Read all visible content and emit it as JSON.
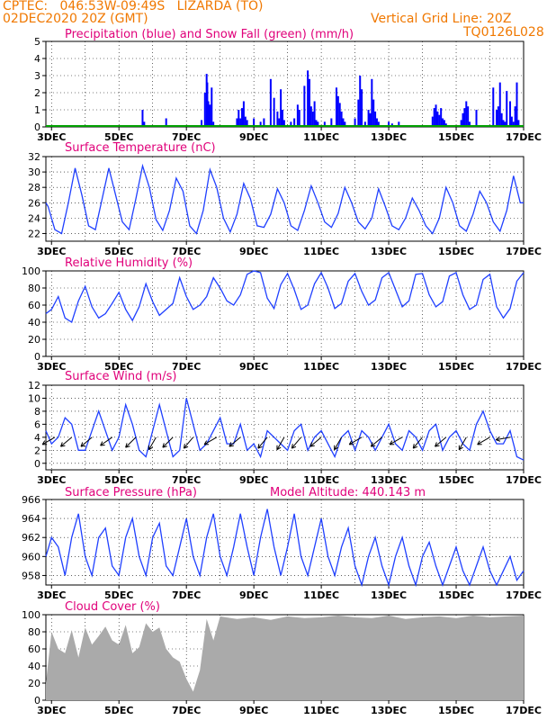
{
  "header": {
    "line1": "CPTEC:   046:53W-09:49S   LIZARDA (TO)",
    "line2": "02DEC2020 20Z (GMT)",
    "grid_note": "Vertical Grid Line: 20Z",
    "code": "TQ0126L028"
  },
  "colors": {
    "precip": "#0000ff",
    "snow": "#00a000",
    "line": "#2040ff",
    "cloud": "#aaaaaa",
    "title": "#e0007a",
    "header": "#f07800"
  },
  "x_labels": [
    "3DEC",
    "5DEC",
    "7DEC",
    "9DEC",
    "11DEC",
    "13DEC",
    "15DEC",
    "17DEC"
  ],
  "chart_data": [
    {
      "type": "bar",
      "title": "Precipitation (blue) and Snow Fall (green) (mm/h)",
      "ylim": [
        0,
        5
      ],
      "yticks": [
        0,
        1,
        2,
        3,
        4,
        5
      ],
      "x_range_days": [
        2.833,
        17.0
      ],
      "series": [
        {
          "name": "Precipitation",
          "x": [
            5.7,
            5.75,
            6.4,
            7.45,
            7.55,
            7.6,
            7.62,
            7.65,
            7.7,
            7.75,
            7.8,
            8.5,
            8.55,
            8.6,
            8.65,
            8.7,
            8.75,
            8.8,
            9.0,
            9.2,
            9.3,
            9.5,
            9.6,
            9.7,
            9.75,
            9.8,
            9.85,
            9.9,
            10.1,
            10.2,
            10.3,
            10.35,
            10.5,
            10.6,
            10.65,
            10.7,
            10.75,
            10.8,
            10.85,
            10.9,
            11.1,
            11.3,
            11.45,
            11.5,
            11.55,
            11.6,
            11.65,
            11.7,
            12.0,
            12.1,
            12.15,
            12.2,
            12.3,
            12.4,
            12.45,
            12.5,
            12.55,
            12.6,
            12.65,
            12.7,
            13.0,
            13.1,
            13.3,
            14.3,
            14.35,
            14.4,
            14.45,
            14.5,
            14.55,
            14.6,
            14.65,
            14.7,
            15.15,
            15.2,
            15.25,
            15.3,
            15.35,
            15.4,
            15.6,
            16.1,
            16.2,
            16.25,
            16.3,
            16.35,
            16.4,
            16.45,
            16.5,
            16.6,
            16.65,
            16.7,
            16.75,
            16.8,
            16.85
          ],
          "values": [
            1.0,
            0.3,
            0.5,
            0.4,
            2.0,
            3.1,
            2.6,
            1.5,
            1.3,
            2.3,
            0.3,
            0.5,
            1.0,
            0.5,
            1.1,
            1.5,
            0.6,
            0.4,
            0.5,
            0.3,
            0.5,
            2.8,
            1.7,
            0.9,
            0.5,
            2.2,
            1.0,
            0.4,
            0.3,
            0.5,
            1.3,
            1.0,
            2.4,
            3.3,
            2.8,
            1.2,
            0.9,
            1.5,
            0.4,
            0.3,
            0.3,
            0.5,
            2.3,
            1.8,
            1.4,
            0.9,
            0.5,
            0.3,
            0.5,
            1.6,
            3.0,
            2.2,
            0.3,
            1.0,
            0.8,
            2.8,
            1.6,
            0.9,
            0.5,
            0.3,
            0.3,
            0.2,
            0.3,
            0.6,
            1.1,
            1.3,
            0.9,
            0.7,
            1.1,
            0.5,
            0.4,
            0.2,
            0.4,
            0.8,
            1.1,
            1.5,
            1.2,
            0.3,
            1.0,
            2.3,
            1.0,
            1.2,
            2.6,
            0.8,
            0.4,
            0.3,
            2.1,
            1.5,
            0.6,
            0.3,
            1.2,
            2.6,
            0.4
          ]
        },
        {
          "name": "Snow Fall",
          "values": [
            0
          ]
        }
      ]
    },
    {
      "type": "line",
      "title": "Surface Temperature (nC)",
      "ylim": [
        21,
        32
      ],
      "yticks": [
        22,
        24,
        26,
        28,
        30,
        32
      ],
      "x": [
        2.833,
        2.9,
        3.1,
        3.3,
        3.5,
        3.7,
        3.9,
        4.1,
        4.3,
        4.5,
        4.7,
        4.9,
        5.1,
        5.3,
        5.5,
        5.7,
        5.9,
        6.1,
        6.3,
        6.5,
        6.7,
        6.9,
        7.1,
        7.3,
        7.5,
        7.7,
        7.9,
        8.1,
        8.3,
        8.5,
        8.7,
        8.9,
        9.1,
        9.3,
        9.5,
        9.7,
        9.9,
        10.1,
        10.3,
        10.5,
        10.7,
        10.9,
        11.1,
        11.3,
        11.5,
        11.7,
        11.9,
        12.1,
        12.3,
        12.5,
        12.7,
        12.9,
        13.1,
        13.3,
        13.5,
        13.7,
        13.9,
        14.1,
        14.3,
        14.5,
        14.7,
        14.9,
        15.1,
        15.3,
        15.5,
        15.7,
        15.9,
        16.1,
        16.3,
        16.5,
        16.7,
        16.9,
        17.0
      ],
      "values": [
        26,
        25.5,
        22.5,
        22,
        26,
        30.5,
        27,
        23,
        22.5,
        26.5,
        30.5,
        27,
        23.5,
        22.5,
        26.5,
        30.8,
        28,
        23.8,
        22.4,
        25,
        29.2,
        27.5,
        23,
        22,
        25,
        30.3,
        28,
        24,
        22.2,
        24.5,
        28.5,
        26.5,
        23,
        22.8,
        24.5,
        27.8,
        26,
        23,
        22.4,
        25,
        28.2,
        26,
        23.5,
        22.8,
        24.6,
        28,
        26,
        23.5,
        22.6,
        24,
        27.8,
        25.5,
        23,
        22.5,
        24,
        26.6,
        25,
        23,
        22,
        24,
        28,
        26,
        23,
        22.3,
        24.5,
        27.5,
        26,
        23.5,
        22.3,
        25,
        29.5,
        26,
        26
      ]
    },
    {
      "type": "line",
      "title": "Relative Humidity (%)",
      "ylim": [
        0,
        100
      ],
      "yticks": [
        0,
        20,
        40,
        60,
        80,
        100
      ],
      "x": [
        2.833,
        3.0,
        3.2,
        3.4,
        3.6,
        3.8,
        4.0,
        4.2,
        4.4,
        4.6,
        4.8,
        5.0,
        5.2,
        5.4,
        5.6,
        5.8,
        6.0,
        6.2,
        6.4,
        6.6,
        6.8,
        7.0,
        7.2,
        7.4,
        7.6,
        7.8,
        8.0,
        8.2,
        8.4,
        8.6,
        8.8,
        9.0,
        9.2,
        9.4,
        9.6,
        9.8,
        10.0,
        10.2,
        10.4,
        10.6,
        10.8,
        11.0,
        11.2,
        11.4,
        11.6,
        11.8,
        12.0,
        12.2,
        12.4,
        12.6,
        12.8,
        13.0,
        13.2,
        13.4,
        13.6,
        13.8,
        14.0,
        14.2,
        14.4,
        14.6,
        14.8,
        15.0,
        15.2,
        15.4,
        15.6,
        15.8,
        16.0,
        16.2,
        16.4,
        16.6,
        16.8,
        17.0
      ],
      "values": [
        50,
        55,
        70,
        45,
        40,
        65,
        82,
        58,
        45,
        50,
        62,
        75,
        55,
        42,
        58,
        85,
        64,
        48,
        55,
        62,
        92,
        70,
        55,
        60,
        70,
        92,
        80,
        65,
        60,
        72,
        96,
        100,
        98,
        68,
        56,
        84,
        97,
        78,
        55,
        60,
        85,
        98,
        80,
        56,
        62,
        88,
        97,
        76,
        60,
        66,
        92,
        98,
        78,
        58,
        65,
        96,
        97,
        72,
        58,
        64,
        94,
        98,
        72,
        55,
        60,
        90,
        96,
        58,
        45,
        56,
        88,
        98
      ]
    },
    {
      "type": "line",
      "title": "Surface Wind (m/s)",
      "ylim": [
        -1,
        12
      ],
      "yticks": [
        0,
        2,
        4,
        6,
        8,
        10,
        12
      ],
      "x": [
        2.833,
        3.0,
        3.2,
        3.4,
        3.6,
        3.8,
        4.0,
        4.2,
        4.4,
        4.6,
        4.8,
        5.0,
        5.2,
        5.4,
        5.6,
        5.8,
        6.0,
        6.2,
        6.4,
        6.6,
        6.8,
        7.0,
        7.2,
        7.4,
        7.6,
        7.8,
        8.0,
        8.2,
        8.4,
        8.6,
        8.8,
        9.0,
        9.2,
        9.4,
        9.6,
        9.8,
        10.0,
        10.2,
        10.4,
        10.6,
        10.8,
        11.0,
        11.2,
        11.4,
        11.6,
        11.8,
        12.0,
        12.2,
        12.4,
        12.6,
        12.8,
        13.0,
        13.2,
        13.4,
        13.6,
        13.8,
        14.0,
        14.2,
        14.4,
        14.6,
        14.8,
        15.0,
        15.2,
        15.4,
        15.6,
        15.8,
        16.0,
        16.2,
        16.4,
        16.6,
        16.8,
        17.0
      ],
      "values": [
        5,
        3,
        4,
        7,
        6,
        2,
        2,
        5,
        8,
        5,
        2,
        4,
        9,
        6,
        2,
        1,
        5,
        9,
        5,
        1,
        2,
        10,
        6,
        2,
        3,
        5,
        7,
        3,
        3,
        6,
        2,
        3,
        1,
        5,
        4,
        3,
        2,
        5,
        6,
        2,
        4,
        5,
        3,
        1,
        4,
        5,
        2,
        5,
        4,
        2,
        4,
        6,
        3,
        2,
        5,
        4,
        2,
        5,
        6,
        2,
        4,
        5,
        3,
        2,
        6,
        8,
        5,
        3,
        3,
        5,
        1,
        0.5
      ],
      "arrows": [
        [
          3.1,
          -150
        ],
        [
          3.6,
          -140
        ],
        [
          4.2,
          -140
        ],
        [
          4.8,
          -145
        ],
        [
          5.5,
          -135
        ],
        [
          6.1,
          -120
        ],
        [
          6.6,
          -135
        ],
        [
          7.2,
          -130
        ],
        [
          7.9,
          -150
        ],
        [
          8.6,
          -140
        ],
        [
          9.4,
          -130
        ],
        [
          9.9,
          -120
        ],
        [
          10.4,
          -130
        ],
        [
          11.0,
          -140
        ],
        [
          11.6,
          -120
        ],
        [
          12.2,
          -150
        ],
        [
          12.8,
          -140
        ],
        [
          13.4,
          -150
        ],
        [
          14.0,
          -130
        ],
        [
          14.7,
          -140
        ],
        [
          15.3,
          -120
        ],
        [
          16.0,
          -150
        ],
        [
          16.6,
          -170
        ]
      ]
    },
    {
      "type": "line",
      "title": "Surface Pressure (hPa)",
      "subtitle": "Model Altitude: 440.143 m",
      "ylim": [
        957,
        966
      ],
      "yticks": [
        958,
        960,
        962,
        964,
        966
      ],
      "x": [
        2.833,
        3.0,
        3.2,
        3.4,
        3.6,
        3.8,
        4.0,
        4.2,
        4.4,
        4.6,
        4.8,
        5.0,
        5.2,
        5.4,
        5.6,
        5.8,
        6.0,
        6.2,
        6.4,
        6.6,
        6.8,
        7.0,
        7.2,
        7.4,
        7.6,
        7.8,
        8.0,
        8.2,
        8.4,
        8.6,
        8.8,
        9.0,
        9.2,
        9.4,
        9.6,
        9.8,
        10.0,
        10.2,
        10.4,
        10.6,
        10.8,
        11.0,
        11.2,
        11.4,
        11.6,
        11.8,
        12.0,
        12.2,
        12.4,
        12.6,
        12.8,
        13.0,
        13.2,
        13.4,
        13.6,
        13.8,
        14.0,
        14.2,
        14.4,
        14.6,
        14.8,
        15.0,
        15.2,
        15.4,
        15.6,
        15.8,
        16.0,
        16.2,
        16.4,
        16.6,
        16.8,
        17.0
      ],
      "values": [
        960,
        962,
        961,
        958,
        962,
        964.5,
        960,
        958,
        962,
        963,
        959,
        958,
        962,
        964,
        960,
        958,
        962,
        963.5,
        959,
        958,
        961,
        964,
        960,
        958,
        962,
        964.5,
        960,
        958,
        961,
        964.5,
        961,
        958,
        962,
        965,
        961,
        958,
        961,
        964.5,
        960,
        958,
        961,
        964,
        960,
        958,
        961,
        963,
        959,
        957,
        960,
        962,
        959,
        957,
        960,
        962,
        959,
        957,
        960,
        961.5,
        959,
        957,
        959,
        961,
        958.5,
        957,
        959,
        961,
        958.5,
        957,
        958.5,
        960,
        957.5,
        958.5
      ]
    },
    {
      "type": "area",
      "title": "Cloud Cover (%)",
      "ylim": [
        0,
        100
      ],
      "yticks": [
        0,
        20,
        40,
        60,
        80,
        100
      ],
      "x": [
        2.833,
        3.0,
        3.2,
        3.4,
        3.6,
        3.8,
        4.0,
        4.2,
        4.4,
        4.6,
        4.8,
        5.0,
        5.2,
        5.4,
        5.6,
        5.8,
        6.0,
        6.2,
        6.4,
        6.6,
        6.8,
        7.0,
        7.2,
        7.4,
        7.6,
        7.8,
        8.0,
        8.5,
        9.0,
        9.5,
        10.0,
        10.5,
        11.0,
        11.5,
        12.0,
        12.5,
        13.0,
        13.5,
        14.0,
        14.5,
        15.0,
        15.5,
        16.0,
        16.5,
        17.0
      ],
      "values": [
        20,
        80,
        60,
        55,
        82,
        50,
        85,
        65,
        75,
        86,
        70,
        65,
        88,
        55,
        62,
        90,
        80,
        85,
        60,
        50,
        45,
        25,
        10,
        35,
        95,
        70,
        98,
        95,
        97,
        94,
        98,
        96,
        97,
        99,
        97,
        96,
        99,
        95,
        97,
        98,
        96,
        99,
        97,
        98,
        99
      ]
    }
  ]
}
